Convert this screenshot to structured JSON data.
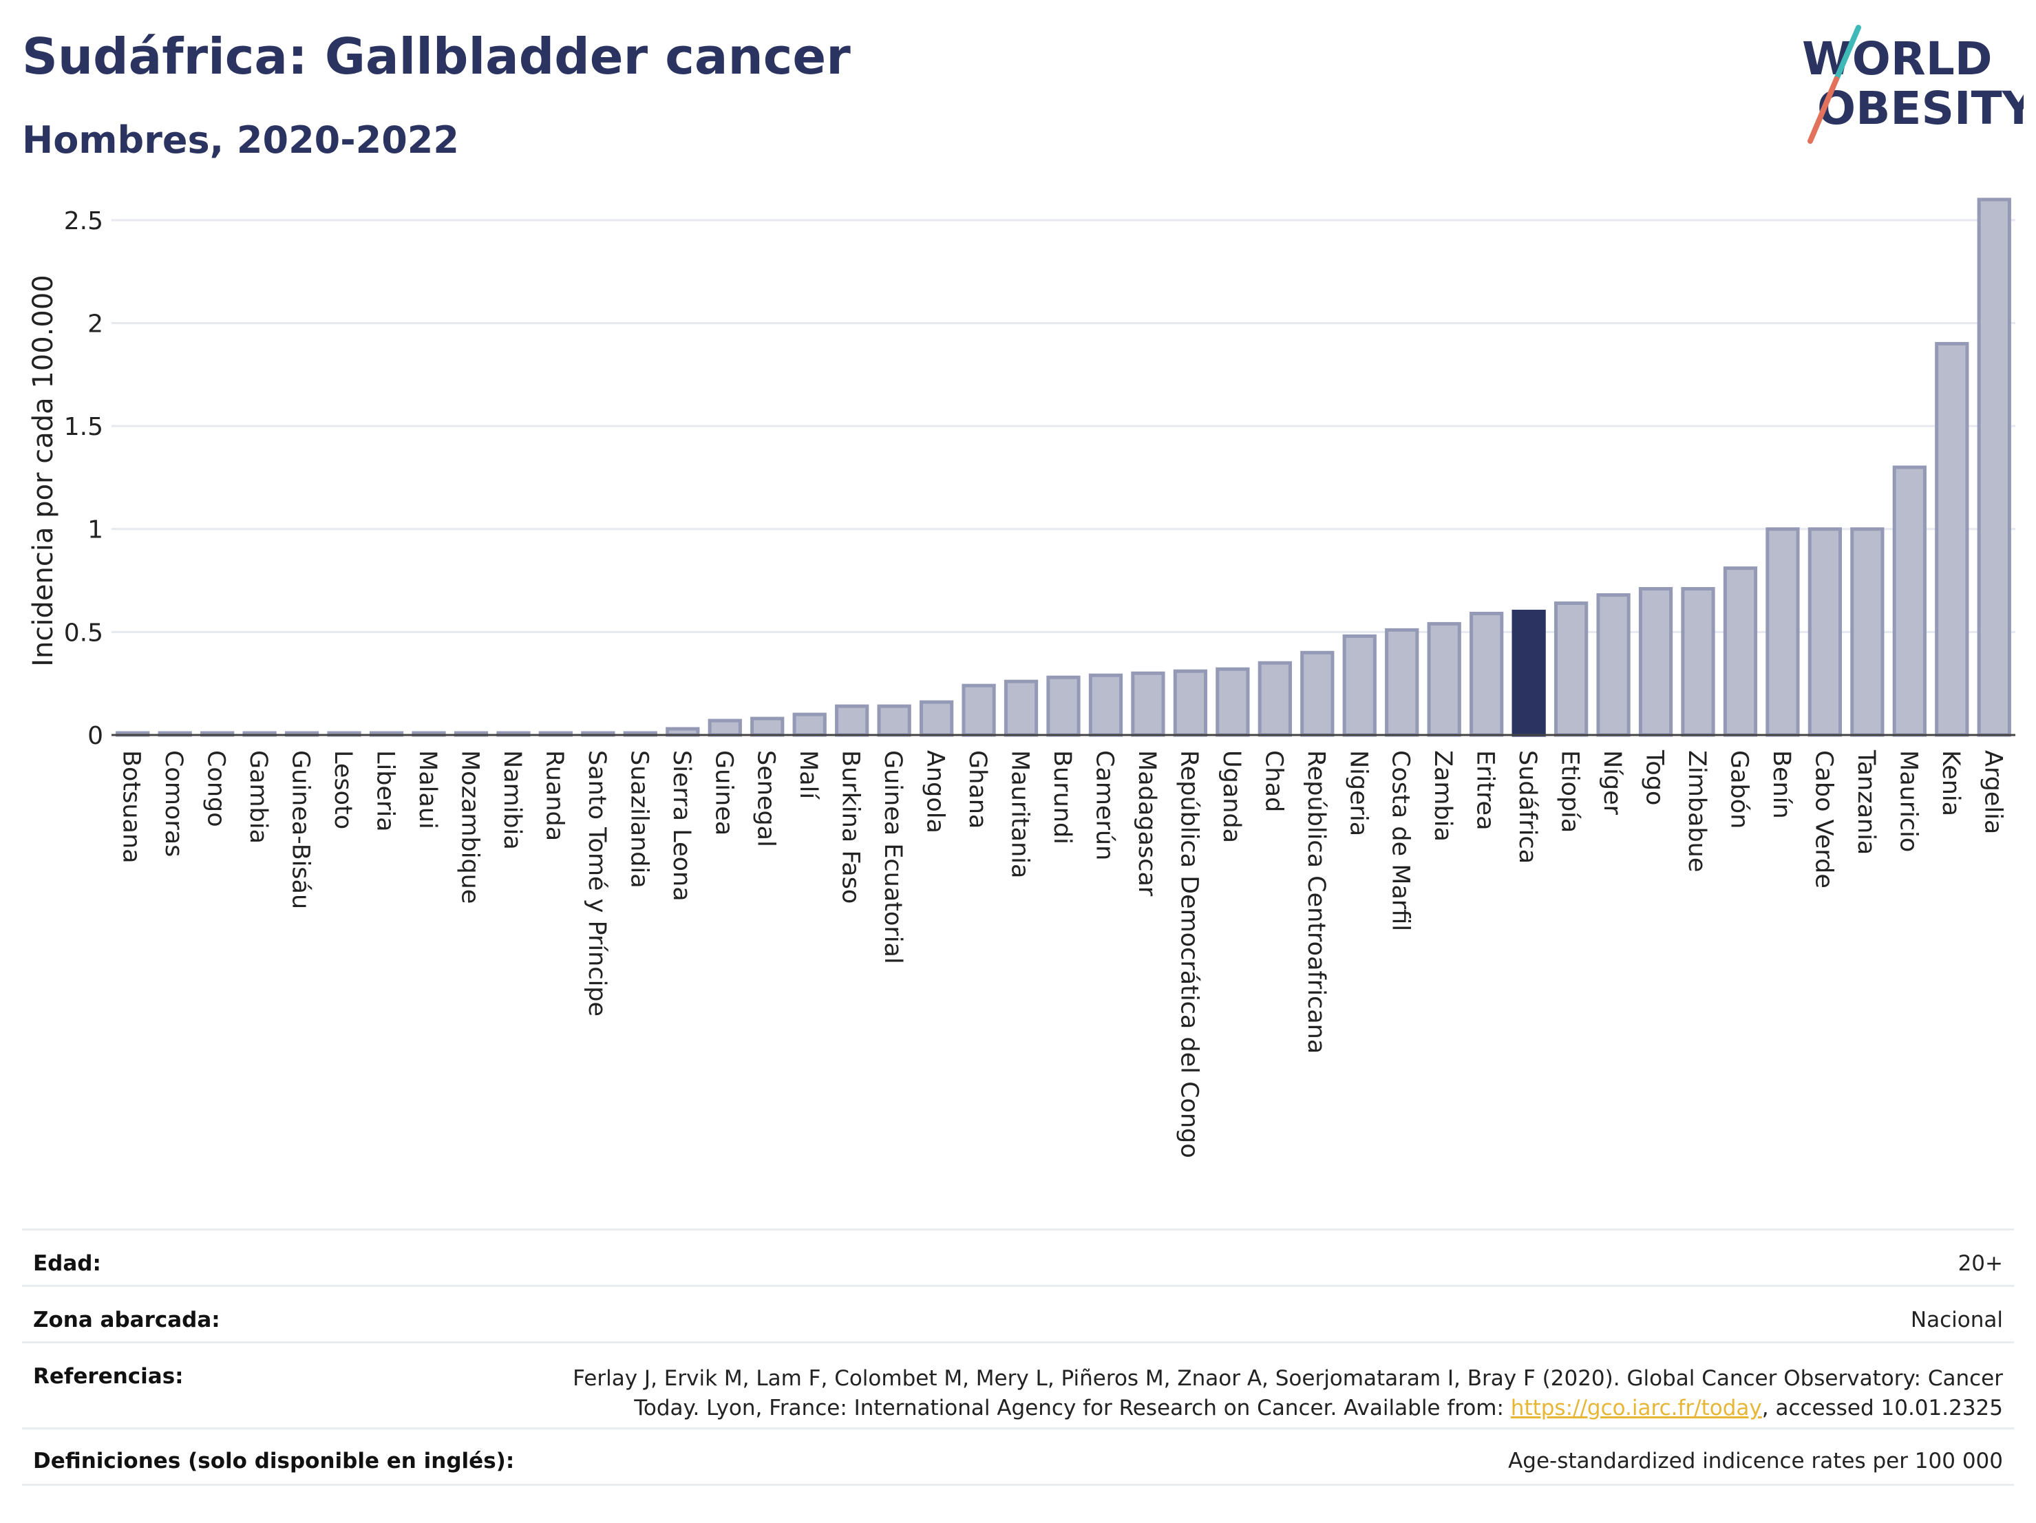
{
  "header": {
    "title": "Sudáfrica: Gallbladder cancer",
    "subtitle": "Hombres, 2020-2022"
  },
  "logo": {
    "line1": "WORLD",
    "line2": "OBESITY",
    "icon": "world-obesity-logo"
  },
  "colors": {
    "bar": "#b9bccd",
    "bar_stroke": "#9499b5",
    "highlight": "#2b3461",
    "title": "#2b3461",
    "link": "#e8b637",
    "grid": "#e6e9ef"
  },
  "chart_data": {
    "type": "bar",
    "ylabel": "Incidencia por cada 100.000",
    "xlabel": "",
    "ylim": [
      0,
      2.7
    ],
    "yticks": [
      0,
      0.5,
      1,
      1.5,
      2,
      2.5
    ],
    "ytick_labels": [
      "0",
      "0.5",
      "1",
      "1.5",
      "2",
      "2.5"
    ],
    "grid": true,
    "highlight": "Sudáfrica",
    "categories": [
      "Botsuana",
      "Comoras",
      "Congo",
      "Gambia",
      "Guinea-Bisáu",
      "Lesoto",
      "Liberia",
      "Malaui",
      "Mozambique",
      "Namibia",
      "Ruanda",
      "Santo Tomé y Príncipe",
      "Suazilandia",
      "Sierra Leona",
      "Guinea",
      "Senegal",
      "Malí",
      "Burkina Faso",
      "Guinea Ecuatorial",
      "Angola",
      "Ghana",
      "Mauritania",
      "Burundi",
      "Camerún",
      "Madagascar",
      "República Democrática del Congo",
      "Uganda",
      "Chad",
      "República Centroafricana",
      "Nigeria",
      "Costa de Marfil",
      "Zambia",
      "Eritrea",
      "Sudáfrica",
      "Etiopía",
      "Níger",
      "Togo",
      "Zimbabue",
      "Gabón",
      "Benín",
      "Cabo Verde",
      "Tanzania",
      "Mauricio",
      "Kenia",
      "Argelia"
    ],
    "values": [
      0.01,
      0.01,
      0.01,
      0.01,
      0.01,
      0.01,
      0.01,
      0.01,
      0.01,
      0.01,
      0.01,
      0.01,
      0.01,
      0.03,
      0.07,
      0.08,
      0.1,
      0.14,
      0.14,
      0.16,
      0.24,
      0.26,
      0.28,
      0.29,
      0.3,
      0.31,
      0.32,
      0.35,
      0.4,
      0.48,
      0.51,
      0.54,
      0.59,
      0.6,
      0.64,
      0.68,
      0.71,
      0.71,
      0.81,
      1.0,
      1.0,
      1.0,
      1.3,
      1.9,
      2.6
    ]
  },
  "info": {
    "age_label": "Edad:",
    "age_value": "20+",
    "area_label": "Zona abarcada:",
    "area_value": "Nacional",
    "ref_label": "Referencias:",
    "ref_line1": "Ferlay J, Ervik M, Lam F, Colombet M, Mery L, Piñeros M, Znaor A, Soerjomataram I, Bray F (2020). Global Cancer Observatory: Cancer",
    "ref_line2_pre": "Today. Lyon, France: International Agency for Research on Cancer. Available from: ",
    "ref_link": "https://gco.iarc.fr/today",
    "ref_line2_post": ", accessed 10.01.2325",
    "def_label": "Definiciones (solo disponible en inglés):",
    "def_value": "Age-standardized indicence rates per 100 000"
  }
}
